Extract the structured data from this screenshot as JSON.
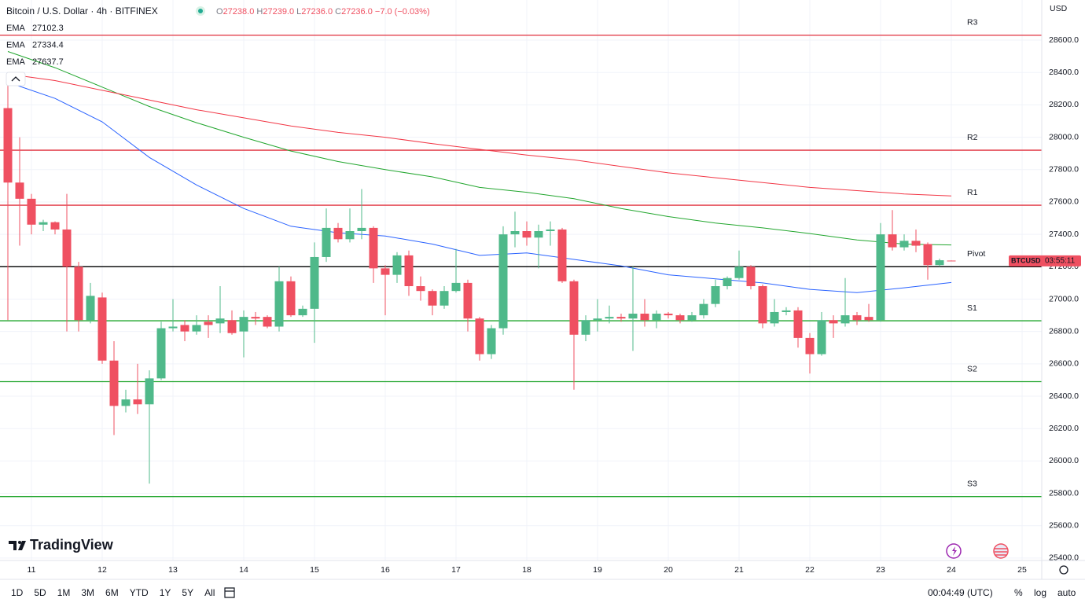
{
  "header": {
    "title": "Bitcoin / U.S. Dollar · 4h · BITFINEX",
    "ohlc": [
      {
        "letter": "O",
        "value": "27238.0"
      },
      {
        "letter": "H",
        "value": "27239.0"
      },
      {
        "letter": "L",
        "value": "27236.0"
      },
      {
        "letter": "C",
        "value": "27236.0"
      }
    ],
    "change": "−7.0 (−0.03%)"
  },
  "chart_data": {
    "type": "candlestick",
    "currency": "USD",
    "xlim": [
      -0.667,
      87.667
    ],
    "ylim": [
      25385,
      28848
    ],
    "xticks": [
      {
        "value": 2,
        "label": "11"
      },
      {
        "value": 8,
        "label": "12"
      },
      {
        "value": 14,
        "label": "13"
      },
      {
        "value": 20,
        "label": "14"
      },
      {
        "value": 26,
        "label": "15"
      },
      {
        "value": 32,
        "label": "16"
      },
      {
        "value": 38,
        "label": "17"
      },
      {
        "value": 44,
        "label": "18"
      },
      {
        "value": 50,
        "label": "19"
      },
      {
        "value": 56,
        "label": "20"
      },
      {
        "value": 62,
        "label": "21"
      },
      {
        "value": 68,
        "label": "22"
      },
      {
        "value": 74,
        "label": "23"
      },
      {
        "value": 80,
        "label": "24"
      },
      {
        "value": 86,
        "label": "25"
      }
    ],
    "yticks": [
      {
        "value": 25400,
        "label": "25400.0"
      },
      {
        "value": 25600,
        "label": "25600.0"
      },
      {
        "value": 25800,
        "label": "25800.0"
      },
      {
        "value": 26000,
        "label": "26000.0"
      },
      {
        "value": 26200,
        "label": "26200.0"
      },
      {
        "value": 26400,
        "label": "26400.0"
      },
      {
        "value": 26600,
        "label": "26600.0"
      },
      {
        "value": 26800,
        "label": "26800.0"
      },
      {
        "value": 27000,
        "label": "27000.0"
      },
      {
        "value": 27200,
        "label": "27200.0"
      },
      {
        "value": 27400,
        "label": "27400.0"
      },
      {
        "value": 27600,
        "label": "27600.0"
      },
      {
        "value": 27800,
        "label": "27800.0"
      },
      {
        "value": 28000,
        "label": "28000.0"
      },
      {
        "value": 28200,
        "label": "28200.0"
      },
      {
        "value": 28400,
        "label": "28400.0"
      },
      {
        "value": 28600,
        "label": "28600.0"
      }
    ],
    "grid": true,
    "up_color": "#4fb98a",
    "down_color": "#ef5061",
    "open": [
      28180,
      27720,
      27620,
      27460,
      27475,
      27430,
      27200,
      26870,
      27010,
      26620,
      26340,
      26380,
      26350,
      26510,
      26820,
      26840,
      26800,
      26860,
      26850,
      26870,
      26800,
      26890,
      26890,
      26830,
      27110,
      26900,
      26940,
      27260,
      27440,
      27370,
      27420,
      27440,
      27190,
      27150,
      27270,
      27080,
      27050,
      26960,
      27050,
      27100,
      26880,
      26660,
      26820,
      27400,
      27420,
      27380,
      27420,
      27430,
      27110,
      26780,
      26870,
      26880,
      26890,
      26880,
      26910,
      26870,
      26910,
      26900,
      26870,
      26900,
      26970,
      27080,
      27130,
      27200,
      27080,
      26850,
      26920,
      26930,
      26760,
      26660,
      26870,
      26850,
      26900,
      26890,
      26870,
      27400,
      27320,
      27360,
      27340,
      27210,
      27238
    ],
    "high": [
      28380,
      28000,
      27650,
      27490,
      27480,
      27650,
      27230,
      27100,
      27040,
      26740,
      26440,
      26600,
      26560,
      26860,
      27000,
      26870,
      26900,
      26900,
      27080,
      26930,
      26930,
      26920,
      26900,
      27200,
      27140,
      26960,
      27350,
      27560,
      27470,
      27560,
      27680,
      27450,
      27210,
      27290,
      27300,
      27140,
      27060,
      27080,
      27310,
      27120,
      26890,
      26840,
      27450,
      27540,
      27480,
      27460,
      27480,
      27440,
      27120,
      26900,
      27000,
      26960,
      26910,
      27200,
      27000,
      26930,
      26920,
      26910,
      26920,
      27000,
      27120,
      27140,
      27300,
      27210,
      27090,
      27000,
      26950,
      26950,
      26790,
      26920,
      26900,
      27130,
      26920,
      26970,
      27470,
      27550,
      27400,
      27430,
      27350,
      27250,
      27239
    ],
    "low": [
      26870,
      27330,
      27400,
      27420,
      27400,
      26800,
      26800,
      26850,
      26600,
      26160,
      26300,
      26290,
      25860,
      26500,
      26800,
      26740,
      26780,
      26760,
      26790,
      26780,
      26640,
      26840,
      26820,
      26800,
      26890,
      26890,
      26730,
      27230,
      27350,
      27350,
      27370,
      27100,
      26900,
      27100,
      27020,
      26990,
      26900,
      26940,
      27040,
      26800,
      26620,
      26630,
      26780,
      27320,
      27330,
      27190,
      27330,
      27100,
      26440,
      26740,
      26800,
      26850,
      26860,
      26680,
      26830,
      26820,
      26880,
      26850,
      26860,
      26880,
      26950,
      27060,
      27120,
      27060,
      26820,
      26830,
      26900,
      26700,
      26540,
      26650,
      26760,
      26830,
      26840,
      26860,
      26860,
      27300,
      27300,
      27290,
      27120,
      27200,
      27236
    ],
    "close": [
      27720,
      27620,
      27460,
      27475,
      27430,
      27200,
      26870,
      27020,
      26620,
      26340,
      26380,
      26350,
      26510,
      26820,
      26830,
      26800,
      26840,
      26840,
      26880,
      26790,
      26890,
      26880,
      26830,
      27110,
      26900,
      26940,
      27260,
      27440,
      27370,
      27420,
      27440,
      27190,
      27150,
      27270,
      27080,
      27050,
      26960,
      27050,
      27100,
      26880,
      26660,
      26820,
      27400,
      27420,
      27380,
      27420,
      27430,
      27110,
      26780,
      26870,
      26880,
      26890,
      26880,
      26910,
      26870,
      26910,
      26900,
      26870,
      26900,
      26970,
      27080,
      27130,
      27200,
      27080,
      26850,
      26920,
      26930,
      26760,
      26660,
      26870,
      26850,
      26900,
      26870,
      26870,
      27400,
      27320,
      27360,
      27330,
      27210,
      27240,
      27236
    ],
    "ema": [
      {
        "name": "EMA",
        "legend_value": "27102.3",
        "color": "#2962ff",
        "x": [
          0,
          4,
          8,
          12,
          16,
          20,
          24,
          28,
          32,
          36,
          40,
          44,
          48,
          52,
          56,
          60,
          64,
          68,
          72,
          76,
          80
        ],
        "values": [
          28340,
          28240,
          28095,
          27875,
          27705,
          27560,
          27450,
          27410,
          27390,
          27340,
          27270,
          27285,
          27245,
          27205,
          27150,
          27125,
          27100,
          27060,
          27040,
          27070,
          27102.3
        ]
      },
      {
        "name": "EMA",
        "legend_value": "27334.4",
        "color": "#22a62e",
        "x": [
          0,
          4,
          8,
          12,
          16,
          20,
          24,
          28,
          32,
          36,
          40,
          44,
          48,
          52,
          56,
          60,
          64,
          68,
          72,
          76,
          80
        ],
        "values": [
          28530,
          28430,
          28310,
          28190,
          28090,
          28000,
          27915,
          27850,
          27800,
          27755,
          27690,
          27660,
          27620,
          27560,
          27510,
          27470,
          27440,
          27405,
          27365,
          27340,
          27334.4
        ]
      },
      {
        "name": "EMA",
        "legend_value": "27637.7",
        "color": "#f23645",
        "x": [
          0,
          4,
          8,
          12,
          16,
          20,
          24,
          28,
          32,
          36,
          40,
          44,
          48,
          52,
          56,
          60,
          64,
          68,
          72,
          76,
          80
        ],
        "values": [
          28390,
          28350,
          28290,
          28230,
          28170,
          28120,
          28070,
          28030,
          28000,
          27960,
          27925,
          27890,
          27860,
          27820,
          27780,
          27750,
          27720,
          27690,
          27670,
          27650,
          27637.7
        ]
      }
    ],
    "levels": [
      {
        "name": "R3",
        "value": 28630,
        "color": "#e0313f"
      },
      {
        "name": "R2",
        "value": 27920,
        "color": "#e0313f"
      },
      {
        "name": "R1",
        "value": 27580,
        "color": "#e0313f"
      },
      {
        "name": "Pivot",
        "value": 27200,
        "color": "#000000"
      },
      {
        "name": "S1",
        "value": 26866,
        "color": "#22a62e"
      },
      {
        "name": "S2",
        "value": 26490,
        "color": "#22a62e"
      },
      {
        "name": "S3",
        "value": 25780,
        "color": "#22a62e"
      }
    ],
    "price_tag": {
      "symbol": "BTCUSD",
      "countdown": "03:55:11"
    }
  },
  "branding": "TradingView",
  "toolbar": {
    "ranges": [
      "1D",
      "5D",
      "1M",
      "3M",
      "6M",
      "YTD",
      "1Y",
      "5Y",
      "All"
    ],
    "clock": "00:04:49 (UTC)",
    "options": [
      "%",
      "log",
      "auto"
    ]
  }
}
